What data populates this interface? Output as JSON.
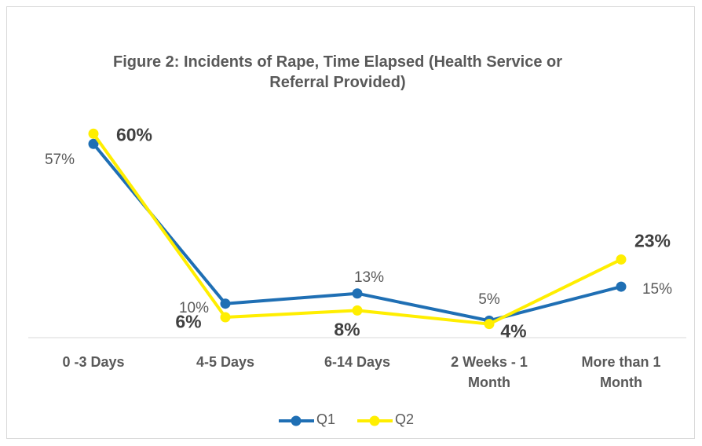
{
  "chart_data": {
    "type": "line",
    "title": "Figure 2: Incidents of Rape, Time Elapsed (Health Service or Referral Provided)",
    "categories": [
      "0 -3 Days",
      "4-5 Days",
      "6-14 Days",
      "2 Weeks - 1 Month",
      "More than 1 Month"
    ],
    "series": [
      {
        "name": "Q1",
        "color": "#1f6fb4",
        "values": [
          57,
          10,
          13,
          5,
          15
        ],
        "value_labels": [
          "57%",
          "10%",
          "13%",
          "5%",
          "15%"
        ]
      },
      {
        "name": "Q2",
        "color": "#ffee00",
        "values": [
          60,
          6,
          8,
          4,
          23
        ],
        "value_labels": [
          "60%",
          "6%",
          "8%",
          "4%",
          "23%"
        ]
      }
    ],
    "ylim": [
      0,
      70
    ],
    "legend": "bottom"
  }
}
